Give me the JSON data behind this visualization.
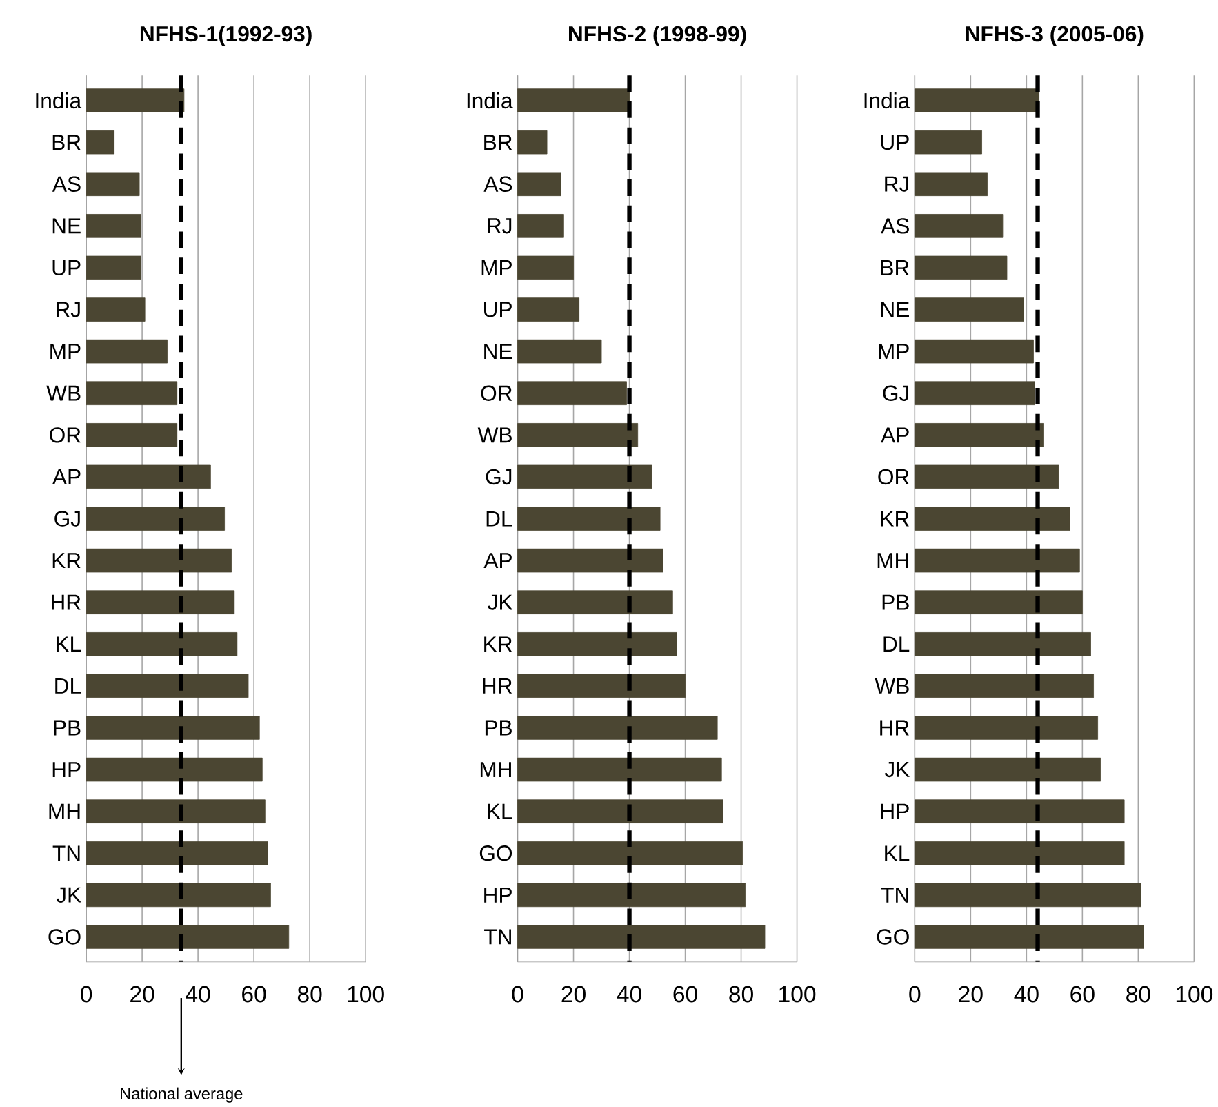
{
  "chart_data": [
    {
      "type": "bar",
      "orientation": "horizontal",
      "title": "NFHS-1(1992-93)",
      "color": "#4b4632",
      "xlim": [
        0,
        100
      ],
      "xticks": [
        0,
        20,
        40,
        60,
        80,
        100
      ],
      "grid": "x",
      "categories": [
        "India",
        "BR",
        "AS",
        "NE",
        "UP",
        "RJ",
        "MP",
        "WB",
        "OR",
        "AP",
        "GJ",
        "KR",
        "HR",
        "KL",
        "DL",
        "PB",
        "HP",
        "MH",
        "TN",
        "JK",
        "GO"
      ],
      "values": [
        35,
        10,
        19,
        19.5,
        19.5,
        21,
        29,
        32.5,
        32.5,
        44.5,
        49.5,
        52,
        53,
        54,
        58,
        62,
        63,
        64,
        65,
        66,
        72.5
      ],
      "ref_lines": [
        {
          "axis": "x",
          "value": 34,
          "label": "National average",
          "color": "#000000",
          "line_style": "dashed"
        }
      ]
    },
    {
      "type": "bar",
      "orientation": "horizontal",
      "title": "NFHS-2 (1998-99)",
      "color": "#4b4632",
      "xlim": [
        0,
        100
      ],
      "xticks": [
        0,
        20,
        40,
        60,
        80,
        100
      ],
      "grid": "x",
      "categories": [
        "India",
        "BR",
        "AS",
        "RJ",
        "MP",
        "UP",
        "NE",
        "OR",
        "WB",
        "GJ",
        "DL",
        "AP",
        "JK",
        "KR",
        "HR",
        "PB",
        "MH",
        "KL",
        "GO",
        "HP",
        "TN"
      ],
      "values": [
        40,
        10.5,
        15.5,
        16.5,
        20,
        22,
        30,
        39,
        43,
        48,
        51,
        52,
        55.5,
        57,
        60,
        71.5,
        73,
        73.5,
        80.5,
        81.5,
        88.5
      ],
      "ref_lines": [
        {
          "axis": "x",
          "value": 40,
          "color": "#000000",
          "line_style": "dashed"
        }
      ]
    },
    {
      "type": "bar",
      "orientation": "horizontal",
      "title": "NFHS-3 (2005-06)",
      "color": "#4b4632",
      "xlim": [
        0,
        100
      ],
      "xticks": [
        0,
        20,
        40,
        60,
        80,
        100
      ],
      "grid": "x",
      "categories": [
        "India",
        "UP",
        "RJ",
        "AS",
        "BR",
        "NE",
        "MP",
        "GJ",
        "AP",
        "OR",
        "KR",
        "MH",
        "PB",
        "DL",
        "WB",
        "HR",
        "JK",
        "HP",
        "KL",
        "TN",
        "GO"
      ],
      "values": [
        44.5,
        24,
        26,
        31.5,
        33,
        39,
        42.5,
        43,
        46,
        51.5,
        55.5,
        59,
        60,
        63,
        64,
        65.5,
        66.5,
        75,
        75,
        81,
        82
      ],
      "ref_lines": [
        {
          "axis": "x",
          "value": 44,
          "color": "#000000",
          "line_style": "dashed"
        }
      ]
    }
  ]
}
